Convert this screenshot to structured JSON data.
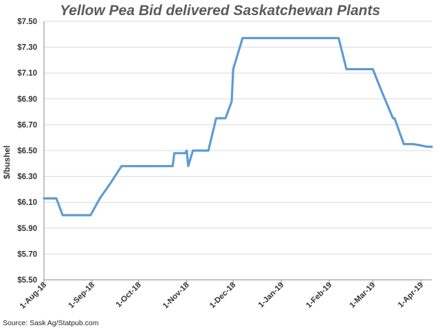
{
  "chart_data": {
    "type": "line",
    "title": "Yellow Pea Bid delivered Saskatchewan Plants",
    "ylabel": "$/bushel",
    "xlabel": "",
    "source": "Source: Sask Ag/Statpub.com",
    "ylim": [
      5.5,
      7.5
    ],
    "y_ticks": [
      "$7.50",
      "$7.30",
      "$7.10",
      "$6.90",
      "$6.70",
      "$6.50",
      "$6.30",
      "$6.10",
      "$5.90",
      "$5.70",
      "$5.50"
    ],
    "y_tick_values": [
      7.5,
      7.3,
      7.1,
      6.9,
      6.7,
      6.5,
      6.3,
      6.1,
      5.9,
      5.7,
      5.5
    ],
    "x_ticks": [
      "1-Aug-18",
      "1-Sep-18",
      "1-Oct-18",
      "1-Nov-18",
      "1-Dec-18",
      "1-Jan-19",
      "1-Feb-19",
      "1-Mar-19",
      "1-Apr-19"
    ],
    "x_tick_dates": [
      "2018-08-01",
      "2018-09-01",
      "2018-10-01",
      "2018-11-01",
      "2018-12-01",
      "2019-01-01",
      "2019-02-01",
      "2019-03-01",
      "2019-04-01"
    ],
    "xlim": [
      "2018-08-01",
      "2019-04-08"
    ],
    "grid": "horizontal",
    "line_color": "#5b9bd5",
    "series": [
      {
        "x": [
          "2018-08-01",
          "2018-08-09",
          "2018-08-13",
          "2018-08-20",
          "2018-08-31",
          "2018-09-06",
          "2018-09-13",
          "2018-09-20",
          "2018-09-28",
          "2018-10-03",
          "2018-10-10",
          "2018-10-17",
          "2018-10-23",
          "2018-10-24",
          "2018-10-31",
          "2018-11-01",
          "2018-11-02",
          "2018-11-05",
          "2018-11-15",
          "2018-11-20",
          "2018-11-26",
          "2018-11-30",
          "2018-12-01",
          "2018-12-07",
          "2018-12-12",
          "2018-12-20",
          "2019-01-01",
          "2019-01-15",
          "2019-02-01",
          "2019-02-07",
          "2019-02-12",
          "2019-02-15",
          "2019-03-01",
          "2019-03-07",
          "2019-03-14",
          "2019-03-15",
          "2019-03-21",
          "2019-03-27",
          "2019-04-01",
          "2019-04-05",
          "2019-04-08"
        ],
        "y": [
          6.13,
          6.13,
          6.0,
          6.0,
          6.0,
          6.13,
          6.25,
          6.38,
          6.38,
          6.38,
          6.38,
          6.38,
          6.38,
          6.48,
          6.48,
          6.5,
          6.38,
          6.5,
          6.5,
          6.75,
          6.75,
          6.88,
          7.13,
          7.37,
          7.37,
          7.37,
          7.37,
          7.37,
          7.37,
          7.37,
          7.13,
          7.13,
          7.13,
          6.95,
          6.75,
          6.75,
          6.55,
          6.55,
          6.54,
          6.53,
          6.53
        ]
      }
    ]
  }
}
